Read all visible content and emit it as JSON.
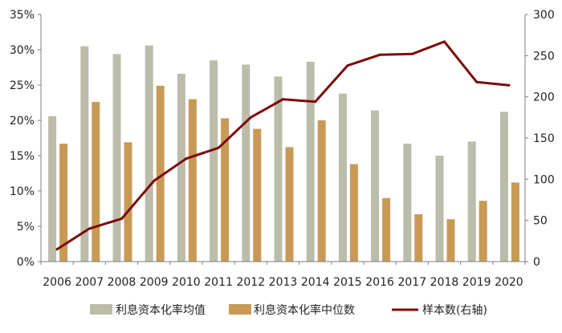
{
  "chart_data": {
    "type": "bar",
    "categories": [
      "2006",
      "2007",
      "2008",
      "2009",
      "2010",
      "2011",
      "2012",
      "2013",
      "2014",
      "2015",
      "2016",
      "2017",
      "2018",
      "2019",
      "2020"
    ],
    "series": [
      {
        "name": "利息资本化率均值",
        "type": "bar",
        "axis": "left",
        "color": "#bcbcaa",
        "values": [
          20.6,
          30.5,
          29.4,
          30.6,
          26.6,
          28.5,
          27.9,
          26.2,
          28.3,
          23.8,
          21.4,
          16.7,
          15.0,
          17.0,
          21.2
        ]
      },
      {
        "name": "利息资本化率中位数",
        "type": "bar",
        "axis": "left",
        "color": "#c89a55",
        "values": [
          16.7,
          22.6,
          16.9,
          24.9,
          23.0,
          20.3,
          18.8,
          16.2,
          20.0,
          13.8,
          9.0,
          6.7,
          6.0,
          8.6,
          11.2
        ]
      },
      {
        "name": "样本数(右轴)",
        "type": "line",
        "axis": "right",
        "color": "#7b0a0a",
        "values": [
          15,
          40,
          52,
          98,
          125,
          138,
          175,
          197,
          194,
          238,
          251,
          252,
          267,
          218,
          214
        ]
      }
    ],
    "left_axis": {
      "ylim": [
        0,
        35
      ],
      "ticks": [
        "0%",
        "5%",
        "10%",
        "15%",
        "20%",
        "25%",
        "30%",
        "35%"
      ]
    },
    "right_axis": {
      "ylim": [
        0,
        300
      ],
      "ticks": [
        "0",
        "50",
        "100",
        "150",
        "200",
        "250",
        "300"
      ]
    },
    "grid": false,
    "legend_position": "bottom"
  }
}
